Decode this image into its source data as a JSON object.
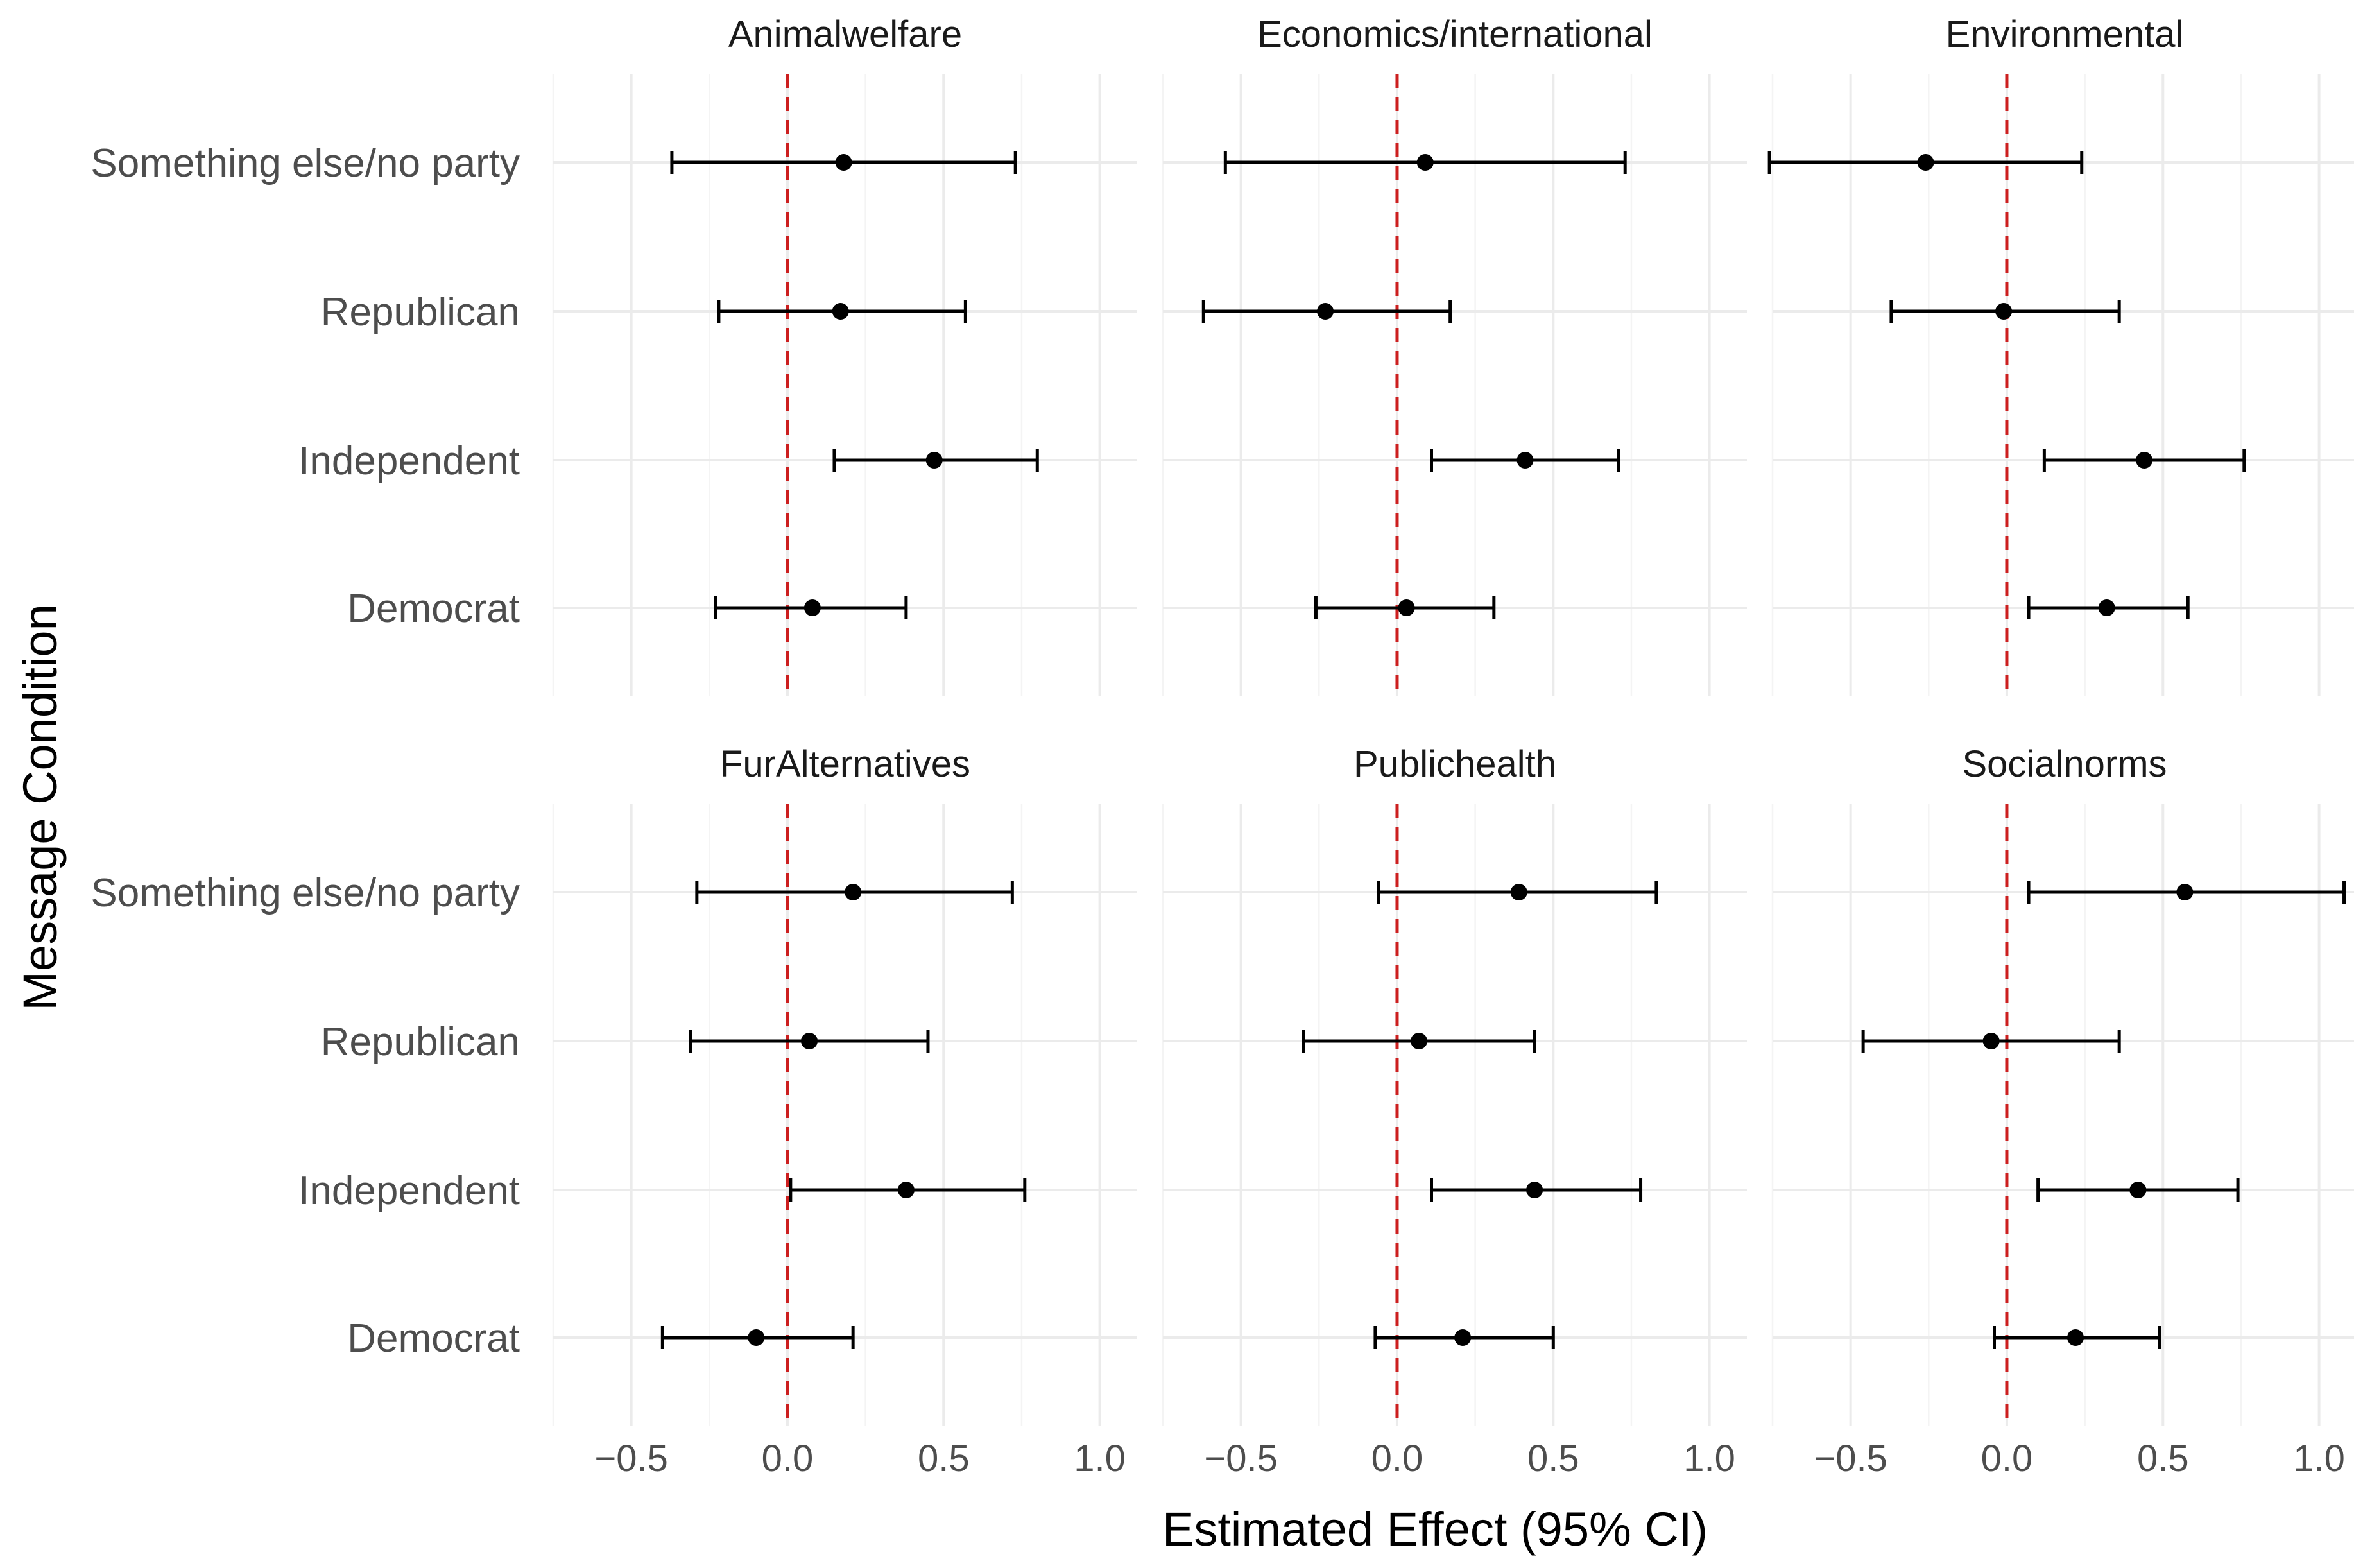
{
  "chart_data": {
    "type": "scatter",
    "subtype": "coefficient-plot-with-95-ci",
    "xlabel": "Estimated Effect (95% CI)",
    "ylabel": "Message Condition",
    "xlim": [
      -0.75,
      1.12
    ],
    "xticks": [
      -0.5,
      0.0,
      0.5,
      1.0
    ],
    "xtick_labels": [
      "−0.5",
      "0.0",
      "0.5",
      "1.0"
    ],
    "reference_line": {
      "x": 0,
      "style": "dashed",
      "color": "#cc1f1f"
    },
    "grid": true,
    "categories": [
      "Something else/no party",
      "Republican",
      "Independent",
      "Democrat"
    ],
    "panels": [
      {
        "title": "Animalwelfare",
        "series": [
          {
            "category": "Something else/no party",
            "estimate": 0.18,
            "lower": -0.37,
            "upper": 0.73
          },
          {
            "category": "Republican",
            "estimate": 0.17,
            "lower": -0.22,
            "upper": 0.57
          },
          {
            "category": "Independent",
            "estimate": 0.47,
            "lower": 0.15,
            "upper": 0.8
          },
          {
            "category": "Democrat",
            "estimate": 0.08,
            "lower": -0.23,
            "upper": 0.38
          }
        ]
      },
      {
        "title": "Economics/international",
        "series": [
          {
            "category": "Something else/no party",
            "estimate": 0.09,
            "lower": -0.55,
            "upper": 0.73
          },
          {
            "category": "Republican",
            "estimate": -0.23,
            "lower": -0.62,
            "upper": 0.17
          },
          {
            "category": "Independent",
            "estimate": 0.41,
            "lower": 0.11,
            "upper": 0.71
          },
          {
            "category": "Democrat",
            "estimate": 0.03,
            "lower": -0.26,
            "upper": 0.31
          }
        ]
      },
      {
        "title": "Environmental",
        "series": [
          {
            "category": "Something else/no party",
            "estimate": -0.26,
            "lower": -0.76,
            "upper": 0.24
          },
          {
            "category": "Republican",
            "estimate": -0.01,
            "lower": -0.37,
            "upper": 0.36
          },
          {
            "category": "Independent",
            "estimate": 0.44,
            "lower": 0.12,
            "upper": 0.76
          },
          {
            "category": "Democrat",
            "estimate": 0.32,
            "lower": 0.07,
            "upper": 0.58
          }
        ]
      },
      {
        "title": "FurAlternatives",
        "series": [
          {
            "category": "Something else/no party",
            "estimate": 0.21,
            "lower": -0.29,
            "upper": 0.72
          },
          {
            "category": "Republican",
            "estimate": 0.07,
            "lower": -0.31,
            "upper": 0.45
          },
          {
            "category": "Independent",
            "estimate": 0.38,
            "lower": 0.01,
            "upper": 0.76
          },
          {
            "category": "Democrat",
            "estimate": -0.1,
            "lower": -0.4,
            "upper": 0.21
          }
        ]
      },
      {
        "title": "Publichealth",
        "series": [
          {
            "category": "Something else/no party",
            "estimate": 0.39,
            "lower": -0.06,
            "upper": 0.83
          },
          {
            "category": "Republican",
            "estimate": 0.07,
            "lower": -0.3,
            "upper": 0.44
          },
          {
            "category": "Independent",
            "estimate": 0.44,
            "lower": 0.11,
            "upper": 0.78
          },
          {
            "category": "Democrat",
            "estimate": 0.21,
            "lower": -0.07,
            "upper": 0.5
          }
        ]
      },
      {
        "title": "Socialnorms",
        "series": [
          {
            "category": "Something else/no party",
            "estimate": 0.57,
            "lower": 0.07,
            "upper": 1.08
          },
          {
            "category": "Republican",
            "estimate": -0.05,
            "lower": -0.46,
            "upper": 0.36
          },
          {
            "category": "Independent",
            "estimate": 0.42,
            "lower": 0.1,
            "upper": 0.74
          },
          {
            "category": "Democrat",
            "estimate": 0.22,
            "lower": -0.04,
            "upper": 0.49
          }
        ]
      }
    ]
  }
}
